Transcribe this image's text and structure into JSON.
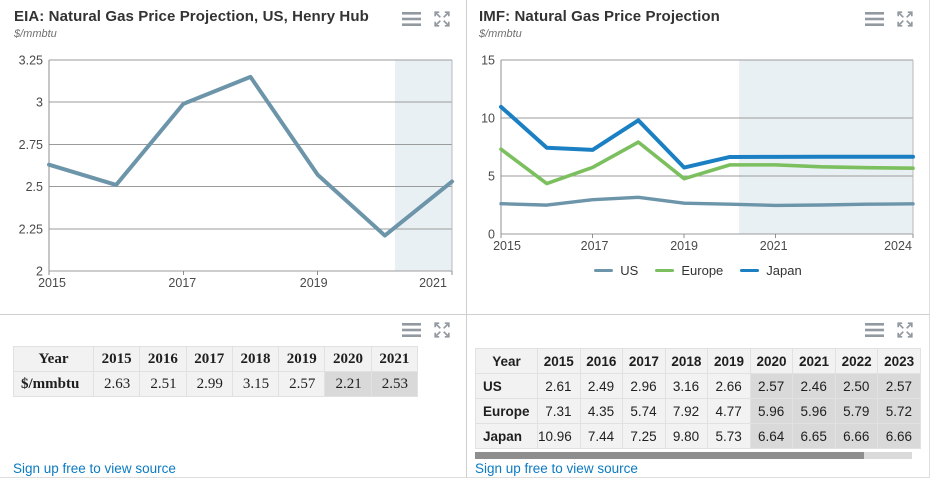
{
  "eia_panel": {
    "title": "EIA: Natural Gas Price Projection, US, Henry Hub",
    "units": "$/mmbtu",
    "table": {
      "columns": [
        "Year",
        "2015",
        "2016",
        "2017",
        "2018",
        "2019",
        "2020",
        "2021"
      ],
      "rows": [
        {
          "label": "$/mmbtu",
          "values": [
            "2.63",
            "2.51",
            "2.99",
            "3.15",
            "2.57",
            "2.21",
            "2.53"
          ]
        }
      ],
      "projection_start_column": "2020"
    },
    "source_link": "Sign up free to view source"
  },
  "imf_panel": {
    "title": "IMF: Natural Gas Price Projection",
    "units": "$/mmbtu",
    "legend": [
      {
        "label": "US",
        "color": "#6d95aa"
      },
      {
        "label": "Europe",
        "color": "#7bbf5e"
      },
      {
        "label": "Japan",
        "color": "#1a7fc3"
      }
    ],
    "table": {
      "columns": [
        "Year",
        "2015",
        "2016",
        "2017",
        "2018",
        "2019",
        "2020",
        "2021",
        "2022",
        "2023"
      ],
      "rows": [
        {
          "label": "US",
          "values": [
            "2.61",
            "2.49",
            "2.96",
            "3.16",
            "2.66",
            "2.57",
            "2.46",
            "2.50",
            "2.57"
          ]
        },
        {
          "label": "Europe",
          "values": [
            "7.31",
            "4.35",
            "5.74",
            "7.92",
            "4.77",
            "5.96",
            "5.96",
            "5.79",
            "5.72"
          ]
        },
        {
          "label": "Japan",
          "values": [
            "10.96",
            "7.44",
            "7.25",
            "9.80",
            "5.73",
            "6.64",
            "6.65",
            "6.66",
            "6.66"
          ]
        }
      ],
      "projection_start_column": "2020"
    },
    "source_link": "Sign up free to view source"
  },
  "colors": {
    "eia_line": "#6d95aa",
    "us_line": "#6d95aa",
    "europe_line": "#7bbf5e",
    "japan_line": "#1a7fc3",
    "projection_shade": "#e9f0f3",
    "grid": "#9b9b9b",
    "axis": "#8f8f8f",
    "tick_label": "#4a4a4a",
    "link": "#0b7bc1",
    "icon": "#8d949d",
    "table_cell_bg": "#f2f2f2",
    "table_projection_bg": "#d9d9d9"
  },
  "chart_data": [
    {
      "type": "line",
      "title": "EIA: Natural Gas Price Projection, US, Henry Hub",
      "ylabel": "$/mmbtu",
      "x": [
        2015,
        2016,
        2017,
        2018,
        2019,
        2020,
        2021
      ],
      "series": [
        {
          "name": "$/mmbtu",
          "color": "#6d95aa",
          "values": [
            2.63,
            2.51,
            2.99,
            3.15,
            2.57,
            2.21,
            2.53
          ]
        }
      ],
      "ylim": [
        2,
        3.25
      ],
      "yticks": [
        "2",
        "2.25",
        "2.5",
        "2.75",
        "3",
        "3.25"
      ],
      "xticks": [
        "2015",
        "2017",
        "2019",
        "2021"
      ],
      "grid": true,
      "legend_position": "none",
      "projection_shade_from_x": 2020.15
    },
    {
      "type": "line",
      "title": "IMF: Natural Gas Price Projection",
      "ylabel": "$/mmbtu",
      "x": [
        2015,
        2016,
        2017,
        2018,
        2019,
        2020,
        2021,
        2022,
        2023,
        2024
      ],
      "series": [
        {
          "name": "US",
          "color": "#6d95aa",
          "values": [
            2.61,
            2.49,
            2.96,
            3.16,
            2.66,
            2.57,
            2.46,
            2.5,
            2.57,
            2.6
          ]
        },
        {
          "name": "Europe",
          "color": "#7bbf5e",
          "values": [
            7.31,
            4.35,
            5.74,
            7.92,
            4.77,
            5.96,
            5.96,
            5.79,
            5.72,
            5.67
          ]
        },
        {
          "name": "Japan",
          "color": "#1a7fc3",
          "values": [
            10.96,
            7.44,
            7.25,
            9.8,
            5.73,
            6.64,
            6.65,
            6.66,
            6.66,
            6.66
          ]
        }
      ],
      "ylim": [
        0,
        15
      ],
      "yticks": [
        "0",
        "5",
        "10",
        "15"
      ],
      "xticks": [
        "2015",
        "2017",
        "2019",
        "2021",
        "2024"
      ],
      "grid": true,
      "legend_position": "bottom",
      "projection_shade_from_x": 2020.2
    }
  ]
}
